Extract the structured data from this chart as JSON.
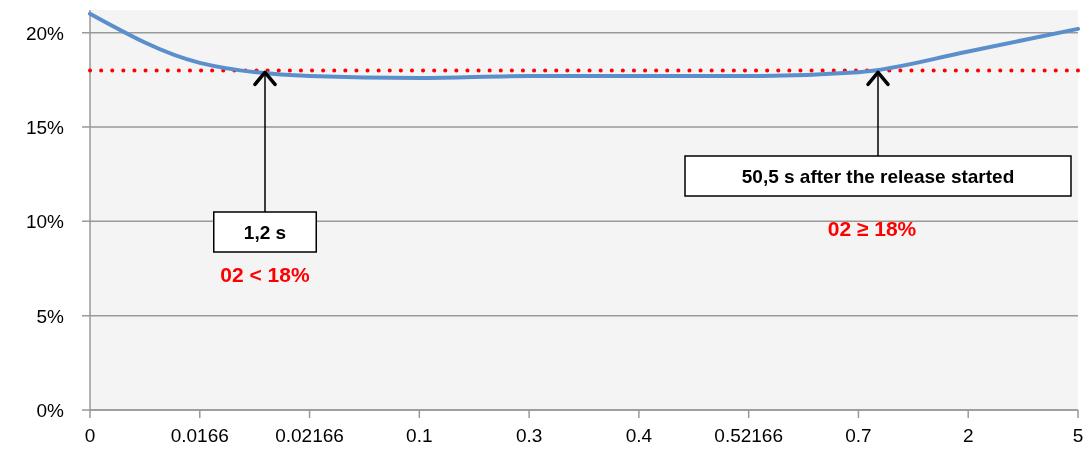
{
  "chart_data": {
    "type": "line",
    "categories": [
      "0",
      "0.0166",
      "0.02166",
      "0.1",
      "0.3",
      "0.4",
      "0.52166",
      "0.7",
      "2",
      "5"
    ],
    "series": [
      {
        "color": "#5b8fcb",
        "values": [
          21.0,
          18.4,
          17.7,
          17.6,
          17.7,
          17.7,
          17.7,
          17.9,
          19.0,
          20.2
        ]
      }
    ],
    "ylim": [
      0,
      21.2
    ],
    "yticks": [
      {
        "value": 0,
        "label": "0%"
      },
      {
        "value": 5,
        "label": "5%"
      },
      {
        "value": 10,
        "label": "10%"
      },
      {
        "value": 15,
        "label": "15%"
      },
      {
        "value": 20,
        "label": "20%"
      }
    ],
    "grid": "y",
    "marker": "none",
    "ref_lines": [
      {
        "axis": "y",
        "value": 18,
        "color": "#ff0000",
        "line_style": "dotted"
      }
    ],
    "annotations": [
      {
        "text": "1,2 s",
        "y": 18
      },
      {
        "text": "50,5 s after the release started",
        "y": 18
      },
      "02 < 18%",
      "02 ≥ 18%"
    ]
  }
}
